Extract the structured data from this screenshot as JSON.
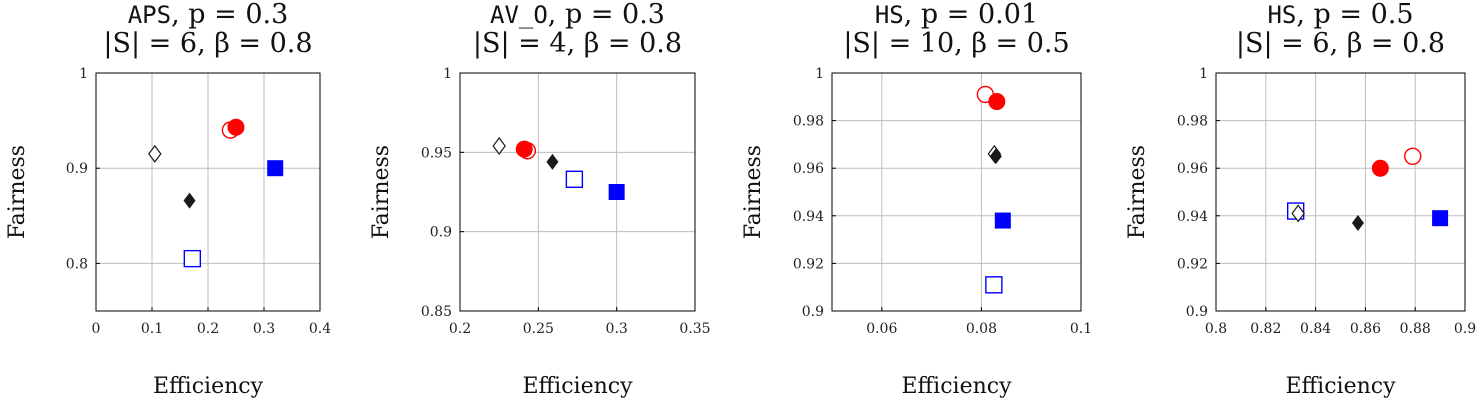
{
  "colors": {
    "red": "#ff0000",
    "blue": "#0000ff",
    "black": "#1a1a1a",
    "grid": "#bdbdbd"
  },
  "chart_data": [
    {
      "type": "scatter",
      "title_parts": [
        "APS",
        ", p = 0.3"
      ],
      "subtitle": "|S| = 6, β = 0.8",
      "xlabel": "Efficiency",
      "ylabel": "Fairness",
      "xlim": [
        0,
        0.4
      ],
      "ylim": [
        0.75,
        1
      ],
      "xticks": [
        0,
        0.1,
        0.2,
        0.3,
        0.4
      ],
      "xtick_labels": [
        "0",
        "0.1",
        "0.2",
        "0.3",
        "0.4"
      ],
      "yticks": [
        0.8,
        0.9,
        1
      ],
      "ytick_labels": [
        "0.8",
        "0.9",
        "1"
      ],
      "grid": true,
      "points": [
        {
          "marker": "diamond-open",
          "color": "black",
          "x": 0.105,
          "y": 0.915
        },
        {
          "marker": "diamond-filled",
          "color": "black",
          "x": 0.167,
          "y": 0.866
        },
        {
          "marker": "square-open",
          "color": "blue",
          "x": 0.172,
          "y": 0.805
        },
        {
          "marker": "circle-open",
          "color": "red",
          "x": 0.24,
          "y": 0.94
        },
        {
          "marker": "circle-filled",
          "color": "red",
          "x": 0.25,
          "y": 0.943
        },
        {
          "marker": "square-filled",
          "color": "blue",
          "x": 0.32,
          "y": 0.9
        }
      ]
    },
    {
      "type": "scatter",
      "title_parts": [
        "AV_O",
        ", p = 0.3"
      ],
      "subtitle": "|S| = 4, β = 0.8",
      "xlabel": "Efficiency",
      "ylabel": "Fairness",
      "xlim": [
        0.2,
        0.35
      ],
      "ylim": [
        0.85,
        1
      ],
      "xticks": [
        0.2,
        0.25,
        0.3,
        0.35
      ],
      "xtick_labels": [
        "0.2",
        "0.25",
        "0.3",
        "0.35"
      ],
      "yticks": [
        0.85,
        0.9,
        0.95,
        1
      ],
      "ytick_labels": [
        "0.85",
        "0.9",
        "0.95",
        "1"
      ],
      "grid": true,
      "points": [
        {
          "marker": "diamond-open",
          "color": "black",
          "x": 0.225,
          "y": 0.954
        },
        {
          "marker": "circle-open",
          "color": "red",
          "x": 0.243,
          "y": 0.951
        },
        {
          "marker": "circle-filled",
          "color": "red",
          "x": 0.241,
          "y": 0.952
        },
        {
          "marker": "diamond-filled",
          "color": "black",
          "x": 0.259,
          "y": 0.944
        },
        {
          "marker": "square-open",
          "color": "blue",
          "x": 0.273,
          "y": 0.933
        },
        {
          "marker": "square-filled",
          "color": "blue",
          "x": 0.3,
          "y": 0.925
        }
      ]
    },
    {
      "type": "scatter",
      "title_parts": [
        "HS",
        ", p = 0.01"
      ],
      "subtitle": "|S| = 10, β = 0.5",
      "xlabel": "Efficiency",
      "ylabel": "Fairness",
      "xlim": [
        0.05,
        0.1
      ],
      "ylim": [
        0.9,
        1
      ],
      "xticks": [
        0.06,
        0.08,
        0.1
      ],
      "xtick_labels": [
        "0.06",
        "0.08",
        "0.1"
      ],
      "yticks": [
        0.9,
        0.92,
        0.94,
        0.96,
        0.98,
        1
      ],
      "ytick_labels": [
        "0.9",
        "0.92",
        "0.94",
        "0.96",
        "0.98",
        "1"
      ],
      "grid": true,
      "points": [
        {
          "marker": "circle-open",
          "color": "red",
          "x": 0.0808,
          "y": 0.991
        },
        {
          "marker": "circle-filled",
          "color": "red",
          "x": 0.0831,
          "y": 0.988
        },
        {
          "marker": "diamond-open",
          "color": "black",
          "x": 0.0826,
          "y": 0.966
        },
        {
          "marker": "diamond-filled",
          "color": "black",
          "x": 0.0829,
          "y": 0.965
        },
        {
          "marker": "square-filled",
          "color": "blue",
          "x": 0.0843,
          "y": 0.938
        },
        {
          "marker": "square-open",
          "color": "blue",
          "x": 0.0825,
          "y": 0.911
        }
      ]
    },
    {
      "type": "scatter",
      "title_parts": [
        "HS",
        ", p = 0.5"
      ],
      "subtitle": "|S| = 6, β = 0.8",
      "xlabel": "Efficiency",
      "ylabel": "Fairness",
      "xlim": [
        0.8,
        0.9
      ],
      "ylim": [
        0.9,
        1
      ],
      "xticks": [
        0.8,
        0.82,
        0.84,
        0.86,
        0.88,
        0.9
      ],
      "xtick_labels": [
        "0.8",
        "0.82",
        "0.84",
        "0.86",
        "0.88",
        "0.9"
      ],
      "yticks": [
        0.9,
        0.92,
        0.94,
        0.96,
        0.98,
        1
      ],
      "ytick_labels": [
        "0.9",
        "0.92",
        "0.94",
        "0.96",
        "0.98",
        "1"
      ],
      "grid": true,
      "points": [
        {
          "marker": "square-open",
          "color": "blue",
          "x": 0.832,
          "y": 0.942
        },
        {
          "marker": "diamond-open",
          "color": "black",
          "x": 0.833,
          "y": 0.941
        },
        {
          "marker": "diamond-filled",
          "color": "black",
          "x": 0.857,
          "y": 0.937
        },
        {
          "marker": "circle-filled",
          "color": "red",
          "x": 0.866,
          "y": 0.96
        },
        {
          "marker": "circle-open",
          "color": "red",
          "x": 0.879,
          "y": 0.965
        },
        {
          "marker": "square-filled",
          "color": "blue",
          "x": 0.89,
          "y": 0.939
        }
      ]
    }
  ]
}
